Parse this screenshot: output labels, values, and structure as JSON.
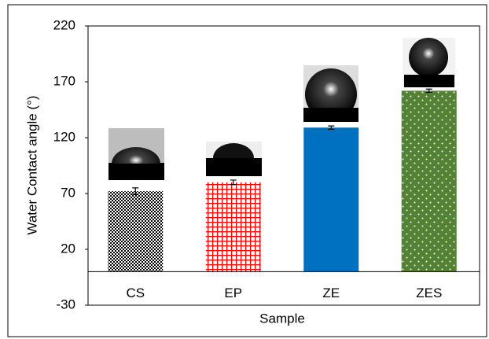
{
  "chart_data": {
    "type": "bar",
    "xlabel": "Sample",
    "ylabel": "Water Contact angle (°)",
    "categories": [
      "CS",
      "EP",
      "ZE",
      "ZES"
    ],
    "values": [
      72,
      80,
      129,
      162
    ],
    "errors": [
      3,
      2,
      1.5,
      1.5
    ],
    "colors": [
      "#000000",
      "#ff0000",
      "#0070c0",
      "#548235"
    ],
    "patterns": [
      "checker",
      "grid",
      "solid",
      "dots"
    ],
    "ylim": [
      -30,
      220
    ],
    "yticks": [
      -30,
      20,
      70,
      120,
      170,
      220
    ]
  }
}
